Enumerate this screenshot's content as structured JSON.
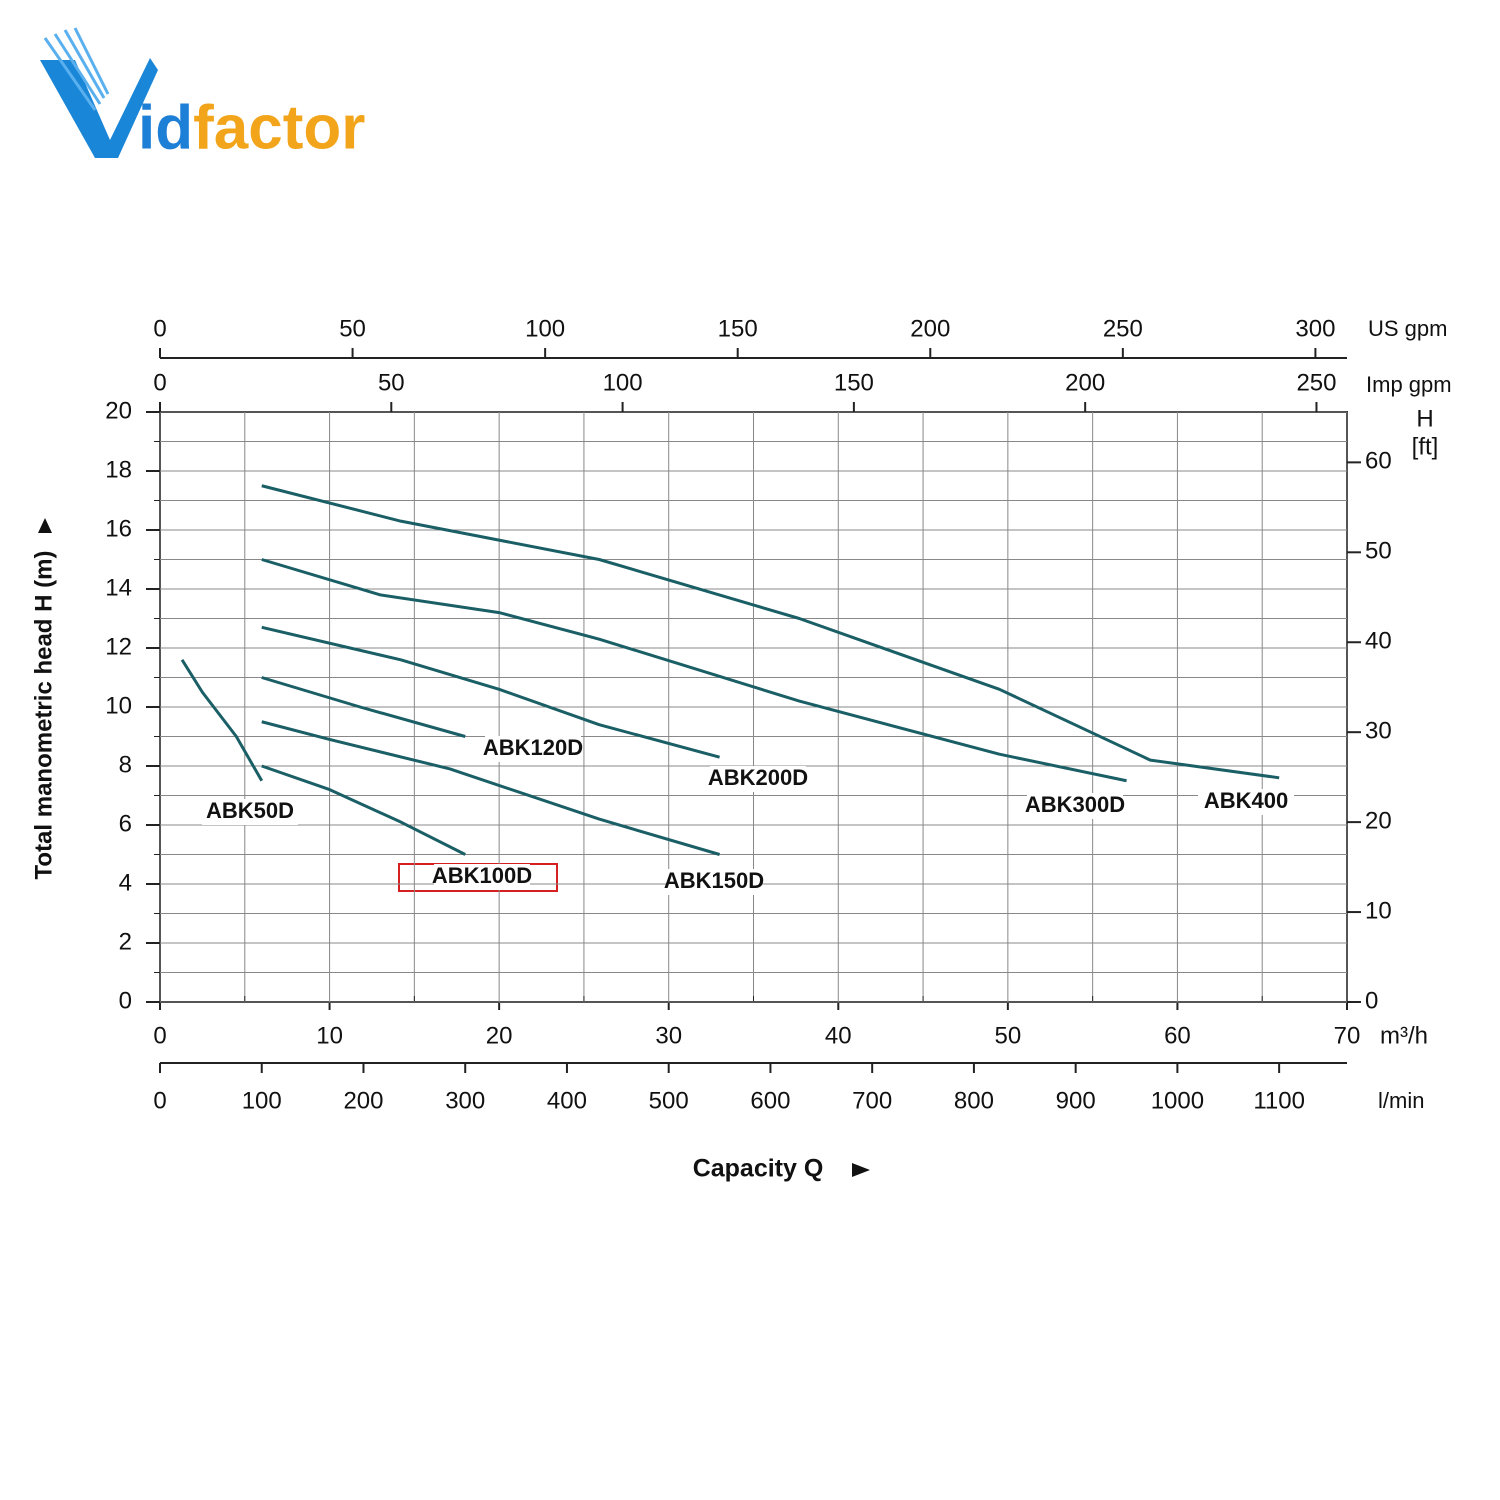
{
  "logo": "idfactor",
  "chart_data": {
    "type": "line",
    "ylabel": "Total manometric head H (m)",
    "xlabel": "Capacity Q",
    "x_unit": "m³/h",
    "xlim": [
      0,
      70
    ],
    "xticks": [
      0,
      10,
      20,
      30,
      40,
      50,
      60,
      70
    ],
    "minor_xticks": [
      5,
      15,
      25,
      35,
      45,
      55,
      65
    ],
    "ylim": [
      0,
      20
    ],
    "yticks": [
      0,
      2,
      4,
      6,
      8,
      10,
      12,
      14,
      16,
      18,
      20
    ],
    "minor_yticks": [
      1,
      3,
      5,
      7,
      9,
      11,
      13,
      15,
      17,
      19
    ],
    "grid": true,
    "y2label": [
      "H",
      "[ft]"
    ],
    "y2lim": [
      0,
      65.6
    ],
    "y2ticks": [
      0,
      10,
      20,
      30,
      40,
      50,
      60
    ],
    "extra_x_axes": [
      {
        "label": "US gpm",
        "position": "top",
        "xlim": [
          0,
          308.2
        ],
        "xticks": [
          0,
          50,
          100,
          150,
          200,
          250,
          300
        ]
      },
      {
        "label": "Imp gpm",
        "position": "top",
        "xlim": [
          0,
          256.6
        ],
        "xticks": [
          0,
          50,
          100,
          150,
          200,
          250
        ]
      },
      {
        "label": "l/min",
        "position": "bottom",
        "xlim": [
          0,
          1166.7
        ],
        "xticks": [
          0,
          100,
          200,
          300,
          400,
          500,
          600,
          700,
          800,
          900,
          1000,
          1100
        ]
      }
    ],
    "series": [
      {
        "name": "ABK50D",
        "color": "#1b5f66",
        "x": [
          1.3,
          2.5,
          4.5,
          6
        ],
        "values": [
          11.6,
          10.5,
          9.0,
          7.5
        ]
      },
      {
        "name": "ABK100D",
        "color": "#1b5f66",
        "x": [
          6,
          10,
          14.2,
          18
        ],
        "values": [
          8.0,
          7.2,
          6.1,
          5.0
        ]
      },
      {
        "name": "ABK120D",
        "color": "#1b5f66",
        "x": [
          6,
          11.8,
          18
        ],
        "values": [
          11.0,
          10.0,
          9.0
        ]
      },
      {
        "name": "ABK150D",
        "color": "#1b5f66",
        "x": [
          6,
          10,
          17.1,
          25.9,
          33
        ],
        "values": [
          9.5,
          8.9,
          7.9,
          6.2,
          5.0
        ]
      },
      {
        "name": "ABK200D",
        "color": "#1b5f66",
        "x": [
          6,
          14.2,
          20,
          25.9,
          33
        ],
        "values": [
          12.7,
          11.6,
          10.6,
          9.4,
          8.3
        ]
      },
      {
        "name": "ABK300D",
        "color": "#1b5f66",
        "x": [
          6,
          13,
          20,
          25.9,
          37.7,
          49.5,
          57
        ],
        "values": [
          15.0,
          13.8,
          13.2,
          12.3,
          10.2,
          8.4,
          7.5
        ]
      },
      {
        "name": "ABK400",
        "color": "#1b5f66",
        "x": [
          6,
          14.2,
          25.9,
          37.7,
          49.5,
          58.4,
          66
        ],
        "values": [
          17.5,
          16.3,
          15.0,
          13.0,
          10.6,
          8.2,
          7.6
        ]
      }
    ]
  }
}
